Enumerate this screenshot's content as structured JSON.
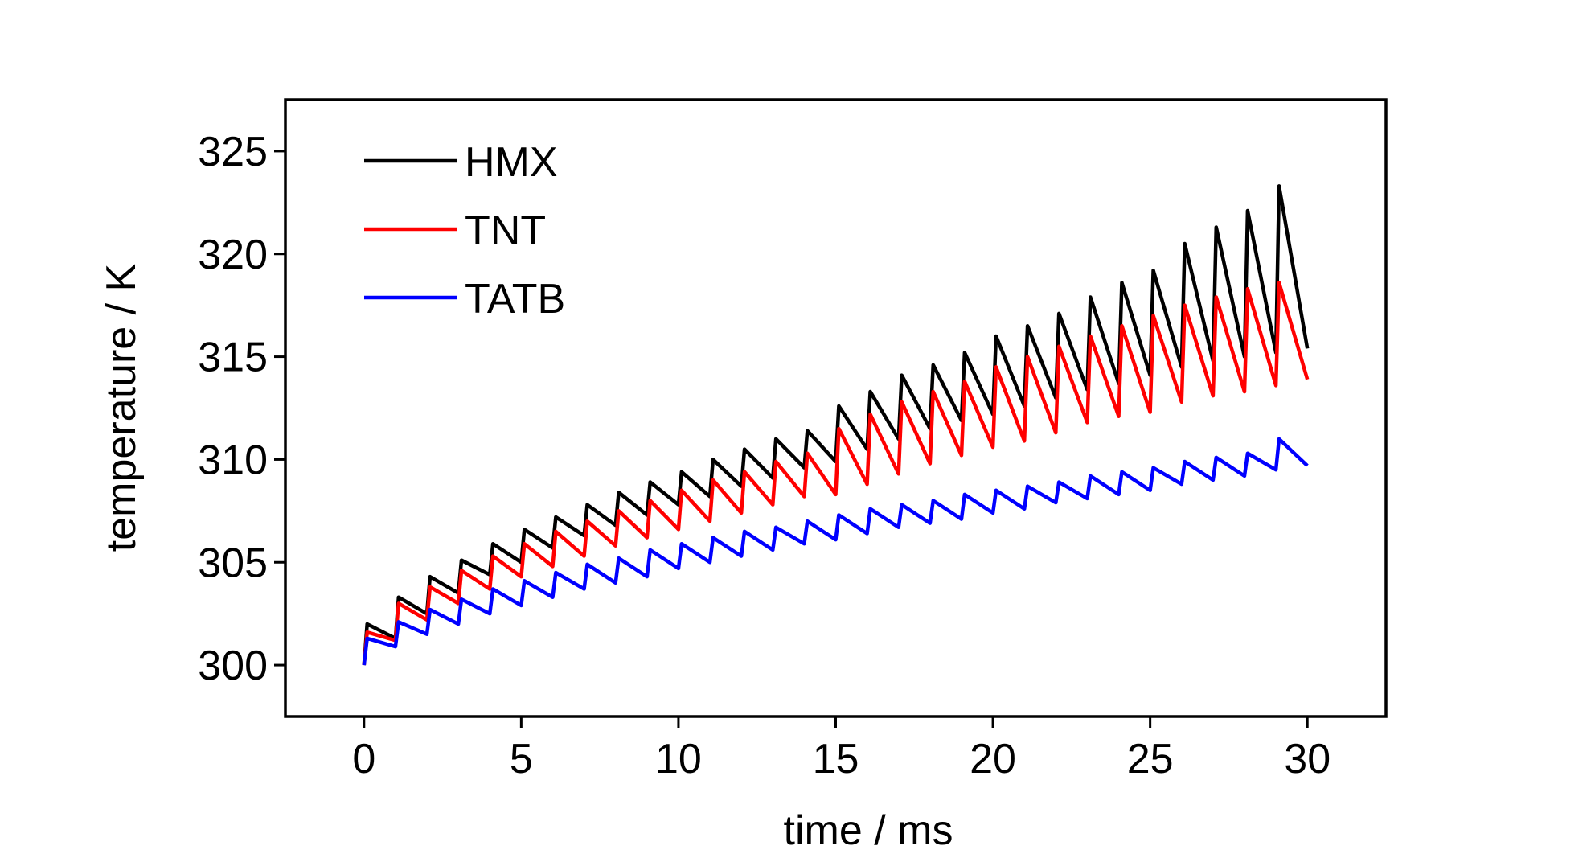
{
  "chart_data": {
    "type": "line",
    "x_label": "time / ms",
    "y_label": "temperature / K",
    "xlim": [
      -2.5,
      32.5
    ],
    "ylim": [
      297.5,
      327.5
    ],
    "xticks": [
      0,
      5,
      10,
      15,
      20,
      25,
      30
    ],
    "yticks": [
      300,
      305,
      310,
      315,
      320,
      325
    ],
    "grid": false,
    "legend": "upper left",
    "x": [
      0,
      0.1,
      1,
      1.1,
      2,
      2.1,
      3,
      3.1,
      4,
      4.1,
      5,
      5.1,
      6,
      6.1,
      7,
      7.1,
      8,
      8.1,
      9,
      9.1,
      10,
      10.1,
      11,
      11.1,
      12,
      12.1,
      13,
      13.1,
      14,
      14.1,
      15,
      15.1,
      16,
      16.1,
      17,
      17.1,
      18,
      18.1,
      19,
      19.1,
      20,
      20.1,
      21,
      21.1,
      22,
      22.1,
      23,
      23.1,
      24,
      24.1,
      25,
      25.1,
      26,
      26.1,
      27,
      27.1,
      28,
      28.1,
      29,
      29.1,
      30
    ],
    "series": [
      {
        "name": "HMX",
        "color": "#000000",
        "values": [
          300,
          302,
          301.3,
          303.3,
          302.5,
          304.3,
          303.5,
          305.1,
          304.4,
          305.9,
          305,
          306.6,
          305.7,
          307.2,
          306.3,
          307.8,
          306.8,
          308.4,
          307.3,
          308.9,
          307.8,
          309.4,
          308.2,
          310,
          308.7,
          310.5,
          309.1,
          311,
          309.6,
          311.4,
          309.9,
          312.6,
          310.5,
          313.3,
          311,
          314.1,
          311.5,
          314.6,
          311.9,
          315.2,
          312.2,
          316,
          312.6,
          316.5,
          313,
          317.1,
          313.4,
          317.9,
          313.7,
          318.6,
          314.1,
          319.2,
          314.5,
          320.5,
          314.8,
          321.3,
          315,
          322.1,
          315.2,
          323.3,
          315.4
        ]
      },
      {
        "name": "TNT",
        "color": "#ff0000",
        "values": [
          300,
          301.6,
          301.2,
          303,
          302.2,
          303.8,
          303,
          304.6,
          303.7,
          305.3,
          304.3,
          305.9,
          304.8,
          306.5,
          305.3,
          307,
          305.8,
          307.5,
          306.2,
          308,
          306.6,
          308.5,
          307,
          309,
          307.4,
          309.4,
          307.8,
          309.9,
          308.2,
          310.3,
          308.3,
          311.5,
          308.8,
          312.2,
          309.3,
          312.8,
          309.8,
          313.3,
          310.2,
          313.8,
          310.6,
          314.5,
          310.9,
          315,
          311.3,
          315.5,
          311.8,
          316,
          312.1,
          316.5,
          312.3,
          317,
          312.8,
          317.5,
          313.1,
          317.9,
          313.3,
          318.3,
          313.6,
          318.6,
          313.9
        ]
      },
      {
        "name": "TATB",
        "color": "#0000ff",
        "values": [
          300,
          301.3,
          300.9,
          302.1,
          301.5,
          302.7,
          302,
          303.2,
          302.5,
          303.7,
          302.9,
          304.1,
          303.3,
          304.5,
          303.7,
          304.9,
          304,
          305.2,
          304.3,
          305.6,
          304.7,
          305.9,
          305,
          306.2,
          305.3,
          306.5,
          305.6,
          306.7,
          305.9,
          307,
          306.1,
          307.3,
          306.4,
          307.6,
          306.7,
          307.8,
          306.9,
          308,
          307.1,
          308.3,
          307.4,
          308.5,
          307.6,
          308.7,
          307.9,
          308.9,
          308.1,
          309.2,
          308.3,
          309.4,
          308.5,
          309.6,
          308.8,
          309.9,
          309,
          310.1,
          309.2,
          310.3,
          309.5,
          311,
          309.7
        ]
      }
    ]
  }
}
